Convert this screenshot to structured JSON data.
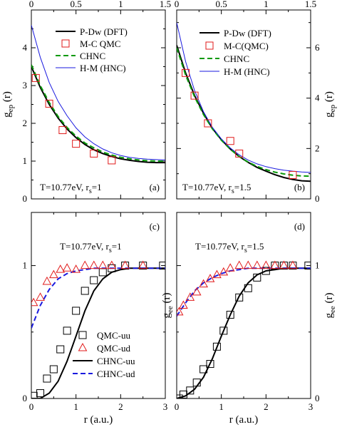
{
  "chart_data": [
    {
      "id": "a",
      "type": "line",
      "panel_label": "(a)",
      "annotation": "T=10.77eV, r_s=1",
      "ylabel": "g_ep(r)",
      "ylabel_side": "left",
      "xlim": [
        0,
        1.5
      ],
      "ylim": [
        0,
        5
      ],
      "xticks": [
        0,
        0.5,
        1,
        1.5
      ],
      "xtick_labels_top": [
        "0",
        "0.5",
        "1",
        "1.5"
      ],
      "yticks": [
        0,
        1,
        2,
        3,
        4
      ],
      "ytick_labels": [
        "0",
        "1",
        "2",
        "3",
        "4"
      ],
      "legend": "top-right",
      "series": [
        {
          "name": "P-Dw (DFT)",
          "style": "solid",
          "color": "#000000",
          "x": [
            0,
            0.1,
            0.2,
            0.3,
            0.4,
            0.5,
            0.6,
            0.7,
            0.8,
            0.9,
            1.0,
            1.1,
            1.2,
            1.3,
            1.4,
            1.5
          ],
          "y": [
            3.5,
            2.95,
            2.5,
            2.14,
            1.85,
            1.62,
            1.44,
            1.3,
            1.2,
            1.12,
            1.06,
            1.02,
            0.99,
            0.97,
            0.96,
            0.96
          ]
        },
        {
          "name": "CHNC",
          "style": "dashed",
          "color": "#0a9a0a",
          "x": [
            0,
            0.1,
            0.2,
            0.3,
            0.4,
            0.5,
            0.6,
            0.7,
            0.8,
            0.9,
            1.0,
            1.1,
            1.2,
            1.3,
            1.4,
            1.5
          ],
          "y": [
            3.55,
            3.0,
            2.55,
            2.18,
            1.89,
            1.66,
            1.48,
            1.35,
            1.24,
            1.16,
            1.1,
            1.06,
            1.03,
            1.01,
            1.0,
            1.0
          ]
        },
        {
          "name": "H-M (HNC)",
          "style": "solid-thin",
          "color": "#1a1adf",
          "x": [
            0,
            0.1,
            0.2,
            0.3,
            0.4,
            0.5,
            0.6,
            0.7,
            0.8,
            0.9,
            1.0,
            1.1,
            1.2,
            1.3,
            1.4,
            1.5
          ],
          "y": [
            4.6,
            3.75,
            3.08,
            2.58,
            2.2,
            1.88,
            1.64,
            1.46,
            1.32,
            1.22,
            1.15,
            1.1,
            1.07,
            1.05,
            1.04,
            1.03
          ]
        },
        {
          "name": "M-C QMC",
          "style": "marker-square",
          "color": "#e11a1a",
          "x": [
            0.05,
            0.2,
            0.35,
            0.5,
            0.7,
            0.9
          ],
          "y": [
            3.2,
            2.52,
            1.82,
            1.46,
            1.2,
            1.02
          ]
        }
      ]
    },
    {
      "id": "b",
      "type": "line",
      "panel_label": "(b)",
      "annotation": "T=10.77eV, r_s=1.5",
      "ylabel": "g_ep(r)",
      "ylabel_side": "right",
      "xlim": [
        0,
        1.5
      ],
      "ylim": [
        0,
        7.5
      ],
      "xticks": [
        0,
        0.5,
        1,
        1.5
      ],
      "xtick_labels_top": [
        "0",
        "0.5",
        "1",
        "1.5"
      ],
      "yticks": [
        0,
        2,
        4,
        6
      ],
      "ytick_labels": [
        "0",
        "2",
        "4",
        "6"
      ],
      "legend": "top-right",
      "series": [
        {
          "name": "P-Dw (DFT)",
          "style": "solid",
          "color": "#000000",
          "x": [
            0,
            0.1,
            0.2,
            0.3,
            0.4,
            0.5,
            0.6,
            0.7,
            0.8,
            0.9,
            1.0,
            1.1,
            1.2,
            1.3,
            1.4,
            1.5
          ],
          "y": [
            6.1,
            5.0,
            4.1,
            3.4,
            2.8,
            2.35,
            1.98,
            1.68,
            1.45,
            1.25,
            1.1,
            0.96,
            0.85,
            0.77,
            0.72,
            0.7
          ]
        },
        {
          "name": "CHNC",
          "style": "dashed",
          "color": "#0a9a0a",
          "x": [
            0,
            0.1,
            0.2,
            0.3,
            0.4,
            0.5,
            0.6,
            0.7,
            0.8,
            0.9,
            1.0,
            1.1,
            1.2,
            1.3,
            1.4,
            1.5
          ],
          "y": [
            6.0,
            4.92,
            4.05,
            3.35,
            2.78,
            2.33,
            1.97,
            1.68,
            1.46,
            1.29,
            1.16,
            1.06,
            0.99,
            0.94,
            0.91,
            0.9
          ]
        },
        {
          "name": "H-M (HNC)",
          "style": "solid-thin",
          "color": "#1a1adf",
          "x": [
            0,
            0.1,
            0.2,
            0.3,
            0.4,
            0.5,
            0.6,
            0.7,
            0.8,
            0.9,
            1.0,
            1.1,
            1.2,
            1.3,
            1.4,
            1.5
          ],
          "y": [
            7.0,
            5.45,
            4.3,
            3.46,
            2.84,
            2.38,
            2.02,
            1.75,
            1.54,
            1.39,
            1.28,
            1.2,
            1.14,
            1.1,
            1.07,
            1.05
          ]
        },
        {
          "name": "M-C(QMC)",
          "style": "marker-square",
          "color": "#e11a1a",
          "x": [
            0.1,
            0.2,
            0.35,
            0.6,
            0.7,
            1.3
          ],
          "y": [
            5.0,
            4.1,
            3.0,
            2.3,
            1.8,
            0.95
          ]
        }
      ]
    },
    {
      "id": "c",
      "type": "line",
      "panel_label": "(c)",
      "annotation": "T=10.77eV, r_s=1",
      "ylabel": "g_ee(r)",
      "ylabel_side": "right",
      "xlim": [
        0,
        3
      ],
      "ylim": [
        0,
        1.4
      ],
      "xticks": [
        0,
        1,
        2,
        3
      ],
      "xtick_labels": [
        "0",
        "1",
        "2",
        "3"
      ],
      "yticks": [
        0,
        1
      ],
      "ytick_labels": [
        "0",
        "1"
      ],
      "xlabel": "r (a.u.)",
      "legend": "bottom-right",
      "series": [
        {
          "name": "CHNC-uu",
          "style": "solid",
          "color": "#000000",
          "x": [
            0,
            0.2,
            0.4,
            0.6,
            0.8,
            1.0,
            1.2,
            1.4,
            1.6,
            1.8,
            2.0,
            2.2,
            2.4,
            2.6,
            2.8,
            3.0
          ],
          "y": [
            0.0,
            0.0,
            0.04,
            0.13,
            0.28,
            0.47,
            0.66,
            0.81,
            0.9,
            0.95,
            0.97,
            0.98,
            0.98,
            0.98,
            0.98,
            0.98
          ]
        },
        {
          "name": "CHNC-ud",
          "style": "dashed",
          "color": "#1a1adf",
          "x": [
            0,
            0.2,
            0.4,
            0.6,
            0.8,
            1.0,
            1.2,
            1.4,
            1.6,
            1.8,
            2.0,
            2.2,
            2.4,
            2.6,
            2.8,
            3.0
          ],
          "y": [
            0.53,
            0.7,
            0.82,
            0.9,
            0.94,
            0.96,
            0.97,
            0.98,
            0.98,
            0.98,
            0.98,
            0.98,
            0.98,
            0.98,
            0.98,
            0.98
          ]
        },
        {
          "name": "QMC-uu",
          "style": "marker-square",
          "color": "#000000",
          "x": [
            0.05,
            0.2,
            0.35,
            0.5,
            0.65,
            0.8,
            1.0,
            1.2,
            1.4,
            1.6,
            1.8,
            2.1,
            2.5,
            2.95
          ],
          "y": [
            0.02,
            0.04,
            0.15,
            0.22,
            0.37,
            0.51,
            0.66,
            0.81,
            0.89,
            0.95,
            0.98,
            1.0,
            1.0,
            1.0
          ]
        },
        {
          "name": "QMC-ud",
          "style": "marker-triangle",
          "color": "#e11a1a",
          "x": [
            0.05,
            0.2,
            0.35,
            0.5,
            0.65,
            0.8,
            1.0,
            1.2,
            1.4,
            1.6,
            1.8,
            2.1,
            2.5
          ],
          "y": [
            0.72,
            0.76,
            0.88,
            0.93,
            0.97,
            0.98,
            0.97,
            1.0,
            1.0,
            1.0,
            1.0,
            1.0,
            1.0
          ]
        }
      ]
    },
    {
      "id": "d",
      "type": "line",
      "panel_label": "(d)",
      "annotation": "T=10.77eV, r_s=1.5",
      "ylabel": "g_ee(r)",
      "ylabel_side": "right",
      "xlim": [
        0,
        3
      ],
      "ylim": [
        0,
        1.4
      ],
      "xticks": [
        0,
        1,
        2,
        3
      ],
      "xtick_labels": [
        "0",
        "1",
        "2",
        "3"
      ],
      "yticks": [
        0,
        1
      ],
      "ytick_labels": [
        "0",
        "1"
      ],
      "xlabel": "r (a.u.)",
      "series": [
        {
          "name": "CHNC-uu",
          "style": "solid",
          "color": "#000000",
          "x": [
            0,
            0.2,
            0.4,
            0.6,
            0.8,
            1.0,
            1.2,
            1.4,
            1.6,
            1.8,
            2.0,
            2.2,
            2.4,
            2.6,
            2.8,
            3.0
          ],
          "y": [
            0.0,
            0.02,
            0.07,
            0.16,
            0.3,
            0.47,
            0.63,
            0.77,
            0.87,
            0.93,
            0.96,
            0.97,
            0.98,
            0.98,
            0.98,
            0.98
          ]
        },
        {
          "name": "CHNC-ud",
          "style": "dashed",
          "color": "#1a1adf",
          "x": [
            0,
            0.2,
            0.4,
            0.6,
            0.8,
            1.0,
            1.2,
            1.4,
            1.6,
            1.8,
            2.0,
            2.2,
            2.4,
            2.6,
            2.8,
            3.0
          ],
          "y": [
            0.62,
            0.72,
            0.81,
            0.87,
            0.91,
            0.94,
            0.96,
            0.97,
            0.98,
            0.98,
            0.98,
            0.98,
            0.98,
            0.98,
            0.98,
            0.98
          ]
        },
        {
          "name": "QMC-uu",
          "style": "marker-square",
          "color": "#000000",
          "x": [
            0.05,
            0.15,
            0.3,
            0.45,
            0.6,
            0.75,
            0.9,
            1.05,
            1.2,
            1.4,
            1.6,
            1.8,
            2.0,
            2.2,
            2.4,
            2.6,
            2.95
          ],
          "y": [
            0.0,
            0.03,
            0.06,
            0.12,
            0.22,
            0.26,
            0.39,
            0.51,
            0.63,
            0.76,
            0.83,
            0.91,
            0.96,
            1.0,
            1.0,
            1.0,
            1.0
          ]
        },
        {
          "name": "QMC-ud",
          "style": "marker-triangle",
          "color": "#e11a1a",
          "x": [
            0.05,
            0.15,
            0.3,
            0.45,
            0.6,
            0.75,
            0.9,
            1.05,
            1.2,
            1.4,
            1.6,
            1.8,
            2.0,
            2.2,
            2.4,
            2.6
          ],
          "y": [
            0.65,
            0.7,
            0.76,
            0.8,
            0.86,
            0.9,
            0.93,
            0.95,
            0.98,
            1.0,
            1.0,
            1.0,
            1.0,
            1.0,
            1.0,
            1.0
          ]
        }
      ]
    }
  ],
  "legends": {
    "a": [
      "P-Dw (DFT)",
      "M-C QMC",
      "CHNC",
      "H-M (HNC)"
    ],
    "b": [
      "P-Dw (DFT)",
      "M-C(QMC)",
      "CHNC",
      "H-M (HNC)"
    ],
    "c": [
      "QMC-uu",
      "QMC-ud",
      "CHNC-uu",
      "CHNC-ud"
    ]
  }
}
